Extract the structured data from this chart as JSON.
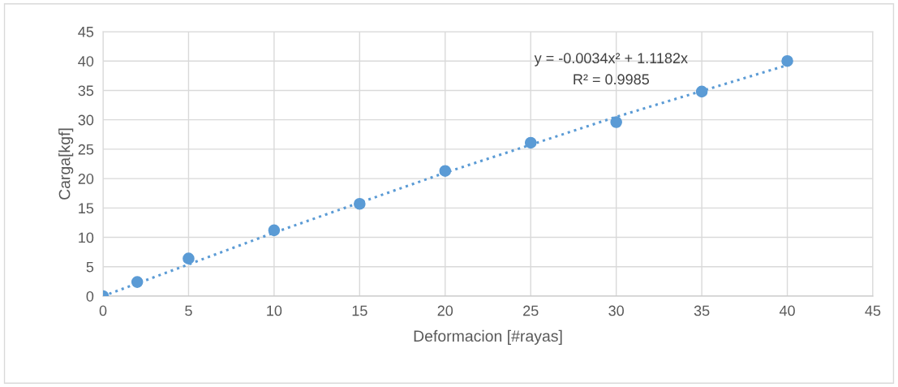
{
  "chart_data": {
    "type": "scatter",
    "xlabel": "Deformacion [#rayas]",
    "ylabel": "Carga[kgf]",
    "x": [
      0,
      2,
      5,
      10,
      15,
      20,
      25,
      30,
      35,
      40
    ],
    "series": [
      {
        "color": "#5b9bd5",
        "marker": "circle",
        "values": [
          0,
          2.4,
          6.4,
          11.2,
          15.7,
          21.3,
          26.1,
          29.6,
          34.8,
          40
        ]
      },
      {
        "type": "line",
        "color": "#5b9bd5",
        "line_style": "dotted",
        "marker": "none",
        "x": [
          0,
          10,
          20,
          30,
          40
        ],
        "values": [
          0,
          10.8,
          21,
          30.5,
          39.3
        ]
      }
    ],
    "annotations": [
      "y = -0.0034x² + 1.1182x",
      "R² = 0.9985"
    ],
    "xlim": [
      0,
      45
    ],
    "xticks": [
      0,
      5,
      10,
      15,
      20,
      25,
      30,
      35,
      40,
      45
    ],
    "ylim": [
      0,
      45
    ],
    "yticks": [
      0,
      5,
      10,
      15,
      20,
      25,
      30,
      35,
      40,
      45
    ],
    "grid": true,
    "legend": false
  }
}
